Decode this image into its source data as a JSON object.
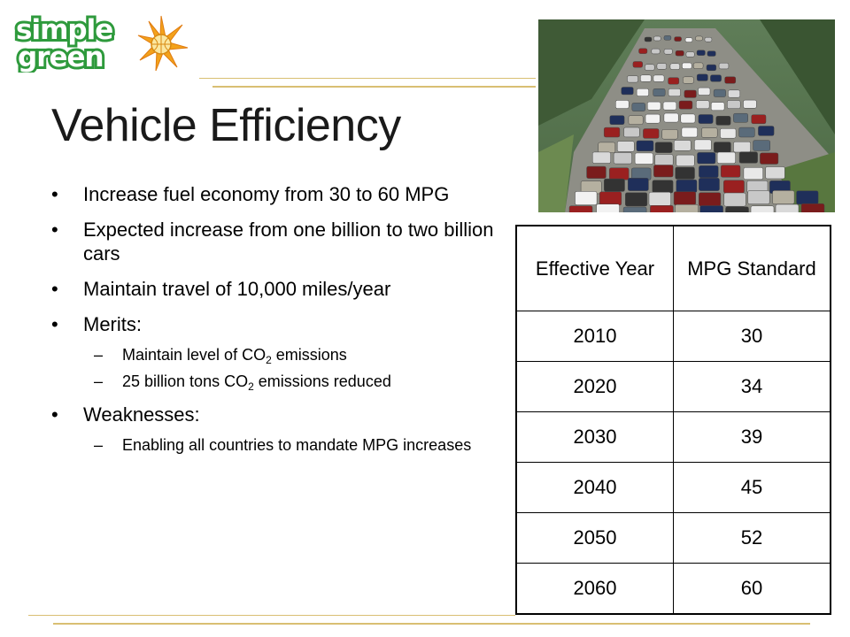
{
  "logo": {
    "text": "simple green"
  },
  "slide": {
    "title": "Vehicle Efficiency",
    "bullets": [
      {
        "text": "Increase fuel economy from 30 to 60 MPG"
      },
      {
        "text": "Expected increase from one billion to two billion cars"
      },
      {
        "text": "Maintain travel of 10,000 miles/year"
      },
      {
        "text": "Merits:"
      },
      {
        "text": "Weaknesses:"
      }
    ],
    "merits": [
      {
        "before": "Maintain level of CO",
        "sub": "2",
        "after": " emissions"
      },
      {
        "before": "25 billion tons CO",
        "sub": "2",
        "after": " emissions reduced"
      }
    ],
    "weaknesses": [
      {
        "text": "Enabling all countries to mandate MPG increases"
      }
    ]
  },
  "table": {
    "headers": [
      "Effective Year",
      "MPG Standard"
    ],
    "rows": [
      [
        "2010",
        "30"
      ],
      [
        "2020",
        "34"
      ],
      [
        "2030",
        "39"
      ],
      [
        "2040",
        "45"
      ],
      [
        "2050",
        "52"
      ],
      [
        "2060",
        "60"
      ]
    ]
  },
  "photo": {
    "icon": "highway-traffic-image"
  },
  "colors": {
    "logo_green": "#2e9a3c",
    "accent_gold": "#d9bf73",
    "star_orange": "#f3a21b"
  }
}
